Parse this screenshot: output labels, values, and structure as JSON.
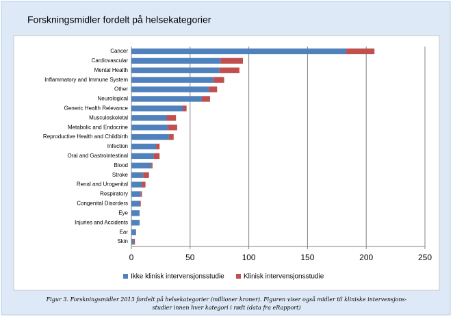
{
  "chart_data": {
    "type": "bar",
    "orientation": "horizontal",
    "stacked": true,
    "title": "Forskningsmidler fordelt på helsekategorier",
    "categories": [
      "Cancer",
      "Cardiovascular",
      "Mental Health",
      "Inflammatory and Immune System",
      "Other",
      "Neurological",
      "Generic Health Relevance",
      "Musculoskeletal",
      "Metabolic and Endocrine",
      "Reproductive Health and Childbirth",
      "Infection",
      "Oral and Gastrointestinal",
      "Blood",
      "Stroke",
      "Renal and Urogenital",
      "Respiratory",
      "Congenital Disorders",
      "Eye",
      "Injuries and Accidents",
      "Ear",
      "Skin"
    ],
    "series": [
      {
        "name": "Ikke klinisk intervensjonsstudie",
        "color": "#4f81bd",
        "values": [
          183,
          76,
          75,
          70,
          66,
          60,
          44,
          30,
          31,
          32,
          21,
          19,
          17,
          10,
          9,
          8,
          7,
          7,
          7,
          4,
          2
        ]
      },
      {
        "name": "Klinisk intervensjonsstudie",
        "color": "#c0504d",
        "values": [
          24,
          19,
          17,
          9,
          7,
          7,
          3,
          8,
          8,
          4,
          3,
          5,
          1,
          5,
          3,
          1,
          1,
          0,
          0,
          0,
          1
        ]
      }
    ],
    "xlim": [
      0,
      250
    ],
    "xticks": [
      0,
      50,
      100,
      150,
      200,
      250
    ],
    "grid": true,
    "legend": "bottom",
    "caption": [
      "Figur 3. Forskningsmidler 2013 fordelt på helsekategorier (millioner kroner). Figuren viser også midler til kliniske intervensjons-",
      "studier innen hver kategori i rødt (data fra eRapport)"
    ]
  }
}
